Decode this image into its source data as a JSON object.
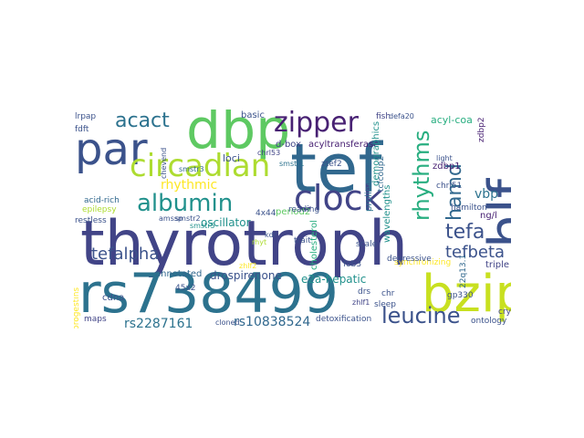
{
  "palette": {
    "dark_purple": "#482173",
    "indigo": "#414487",
    "slate_blue": "#3b528b",
    "steel_blue": "#31688e",
    "teal_blue": "#2c728e",
    "teal": "#21918c",
    "sea_green": "#28ae80",
    "green": "#5ec962",
    "light_green": "#addc30",
    "yellow": "#fde725",
    "olive_yellow": "#c8e020"
  },
  "words": {
    "thyrotroph": "thyrotroph",
    "tef": "tef",
    "rs738499": "rs738499",
    "dbp": "dbp",
    "par": "par",
    "hlf": "hlf",
    "bzip": "bzip",
    "circadian": "circadian",
    "clock": "clock",
    "zipper": "zipper",
    "albumin": "albumin",
    "acact": "acact",
    "leucine": "leucine",
    "rhythms": "rhythms",
    "tefa": "tefa",
    "hamd": "hamd",
    "tefbeta": "tefbeta",
    "tefalpha": "tefalpha",
    "rs2287161": "rs2287161",
    "rs10838524": "rs10838524",
    "rhythmic": "rhythmic",
    "drospirenone": "drospirenone",
    "annotated": "annotated",
    "e2a_hepatic": "e2a-hepatic",
    "acyltransferase": "acyltransferase",
    "acyl_coa": "acyl-coa",
    "vbp": "vbp",
    "period2": "period2",
    "oscillator": "oscillator",
    "loci": "loci",
    "d_box": "d-box",
    "basic": "basic",
    "cholesterol": "cholesterol",
    "demographics": "demographics",
    "wavelengths": "wavelengths",
    "proline": "proline",
    "tcfcoup2": "tcfcoup2",
    "zdbp1": "zdbp1",
    "zdbp2": "zdbp2",
    "chrl51": "chrl51",
    "ng_l": "ng/l",
    "hamilton": "hamilton",
    "triple": "triple",
    "22q13_1": "22q13.1",
    "gp330": "gp330",
    "cry2": "cry2",
    "ontology": "ontology",
    "synchronizing": "synchronizing",
    "detoxification": "detoxification",
    "cloned": "cloned",
    "cdna": "cdna",
    "maps": "maps",
    "progestins": "progestins",
    "restless": "restless",
    "acid_rich": "acid-rich",
    "epilepsy": "epilepsy",
    "smstr1": "smstr1",
    "smstr2": "smstr2",
    "smstr3": "smstr3",
    "smstr5": "smstr5",
    "ztef2": "ztef2",
    "fish": "fish",
    "defa20": "defa20",
    "reading": "reading",
    "lrpap": "lrpap",
    "fdft": "fdft",
    "chevend": "chevend",
    "chrl53": "chrl53",
    "light": "light",
    "trait": "trait",
    "scale": "scale",
    "fob3": "fob3",
    "depressive": "depressive",
    "4x44": "4x44",
    "45x2": "45x2",
    "drs": "drs",
    "chr": "chr",
    "sleep": "sleep",
    "zhlf1": "zhlf1",
    "zhlf2": "zhlf2",
    "amssp": "amssp",
    "kdr": "kdr",
    "rhyt": "rhyt"
  }
}
